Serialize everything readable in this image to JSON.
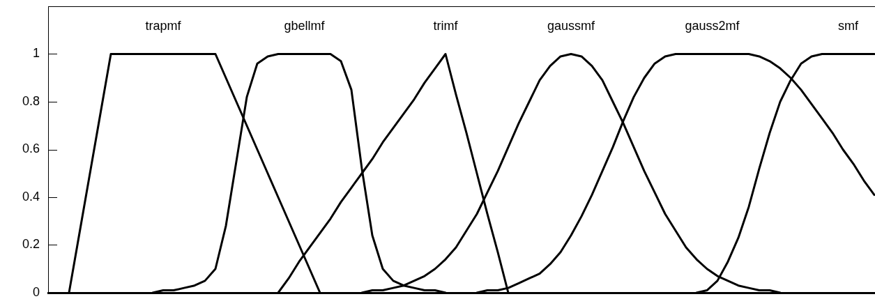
{
  "chart_data": {
    "type": "line",
    "categories": [
      null,
      null,
      null,
      null,
      null,
      null,
      null,
      null,
      null,
      null,
      null,
      null,
      null,
      null,
      null,
      null,
      null,
      null,
      null,
      null,
      null,
      null,
      null,
      null,
      null,
      null,
      null,
      null,
      null,
      null,
      null,
      null,
      null,
      null,
      null,
      null,
      null,
      null,
      null,
      null,
      null,
      null,
      null,
      null,
      null,
      null,
      null,
      null,
      null,
      null,
      null,
      null,
      null,
      null,
      null,
      null,
      null,
      null,
      null,
      null,
      null,
      null,
      null,
      null,
      null,
      null,
      null,
      null,
      null,
      null,
      null,
      null,
      null,
      null,
      null,
      null,
      null,
      null,
      null,
      null
    ],
    "series": [
      {
        "name": "trapmf",
        "color": "#000000",
        "values": [
          null,
          null,
          0,
          0.25,
          0.5,
          0.75,
          1,
          1,
          1,
          1,
          1,
          1,
          1,
          1,
          1,
          1,
          1,
          0.9,
          0.8,
          0.7,
          0.6,
          0.5,
          0.4,
          0.3,
          0.2,
          0.1,
          0,
          null,
          null,
          null,
          null,
          null,
          null,
          null,
          null,
          null,
          null,
          null,
          null,
          null,
          null,
          null,
          null,
          null,
          null,
          null,
          null,
          null,
          null,
          null,
          null,
          null,
          null,
          null,
          null,
          null,
          null,
          null,
          null,
          null,
          null,
          null,
          null,
          null,
          null,
          null,
          null,
          null,
          null,
          null,
          null,
          null,
          null,
          null,
          null,
          null,
          null,
          null,
          null,
          null
        ]
      },
      {
        "name": "gbellmf",
        "color": "#000000",
        "values": [
          null,
          null,
          null,
          null,
          null,
          null,
          null,
          null,
          null,
          null,
          0,
          0.01,
          0.01,
          0.02,
          0.03,
          0.05,
          0.1,
          0.28,
          0.55,
          0.82,
          0.96,
          0.99,
          1,
          1,
          1,
          1,
          1,
          1,
          0.97,
          0.85,
          0.52,
          0.24,
          0.1,
          0.05,
          0.03,
          0.02,
          0.01,
          0.01,
          0,
          null,
          null,
          null,
          null,
          null,
          null,
          null,
          null,
          null,
          null,
          null,
          null,
          null,
          null,
          null,
          null,
          null,
          null,
          null,
          null,
          null,
          null,
          null,
          null,
          null,
          null,
          null,
          null,
          null,
          null,
          null,
          null,
          null,
          null,
          null,
          null,
          null,
          null,
          null,
          null,
          null
        ]
      },
      {
        "name": "trimf",
        "color": "#000000",
        "values": [
          null,
          null,
          null,
          null,
          null,
          null,
          null,
          null,
          null,
          null,
          null,
          null,
          null,
          null,
          null,
          null,
          null,
          null,
          null,
          null,
          null,
          null,
          0,
          0.06,
          0.13,
          0.19,
          0.25,
          0.31,
          0.38,
          0.44,
          0.5,
          0.56,
          0.63,
          0.69,
          0.75,
          0.81,
          0.88,
          0.94,
          1,
          0.83,
          0.67,
          0.5,
          0.33,
          0.17,
          0,
          null,
          null,
          null,
          null,
          null,
          null,
          null,
          null,
          null,
          null,
          null,
          null,
          null,
          null,
          null,
          null,
          null,
          null,
          null,
          null,
          null,
          null,
          null,
          null,
          null,
          null,
          null,
          null,
          null,
          null,
          null,
          null,
          null,
          null,
          null
        ]
      },
      {
        "name": "gaussmf",
        "color": "#000000",
        "values": [
          null,
          null,
          null,
          null,
          null,
          null,
          null,
          null,
          null,
          null,
          null,
          null,
          null,
          null,
          null,
          null,
          null,
          null,
          null,
          null,
          null,
          null,
          null,
          null,
          null,
          null,
          null,
          null,
          null,
          null,
          0,
          0.01,
          0.01,
          0.02,
          0.03,
          0.05,
          0.07,
          0.1,
          0.14,
          0.19,
          0.26,
          0.33,
          0.42,
          0.51,
          0.61,
          0.71,
          0.8,
          0.89,
          0.95,
          0.99,
          1,
          0.99,
          0.95,
          0.89,
          0.8,
          0.71,
          0.61,
          0.51,
          0.42,
          0.33,
          0.26,
          0.19,
          0.14,
          0.1,
          0.07,
          0.05,
          0.03,
          0.02,
          0.01,
          0.01,
          0,
          null,
          null,
          null,
          null,
          null,
          null,
          null,
          null,
          null
        ]
      },
      {
        "name": "gauss2mf",
        "color": "#000000",
        "values": [
          null,
          null,
          null,
          null,
          null,
          null,
          null,
          null,
          null,
          null,
          null,
          null,
          null,
          null,
          null,
          null,
          null,
          null,
          null,
          null,
          null,
          null,
          null,
          null,
          null,
          null,
          null,
          null,
          null,
          null,
          null,
          null,
          null,
          null,
          null,
          null,
          null,
          null,
          null,
          null,
          null,
          0,
          0.01,
          0.01,
          0.02,
          0.04,
          0.06,
          0.08,
          0.12,
          0.17,
          0.24,
          0.32,
          0.41,
          0.51,
          0.61,
          0.72,
          0.82,
          0.9,
          0.96,
          0.99,
          1,
          1,
          1,
          1,
          1,
          1,
          1,
          1,
          0.99,
          0.97,
          0.94,
          0.9,
          0.85,
          0.79,
          0.73,
          0.67,
          0.6,
          0.54,
          0.47,
          0.41
        ]
      },
      {
        "name": "smf",
        "color": "#000000",
        "values": [
          null,
          null,
          null,
          null,
          null,
          null,
          null,
          null,
          null,
          null,
          null,
          null,
          null,
          null,
          null,
          null,
          null,
          null,
          null,
          null,
          null,
          null,
          null,
          null,
          null,
          null,
          null,
          null,
          null,
          null,
          null,
          null,
          null,
          null,
          null,
          null,
          null,
          null,
          null,
          null,
          null,
          null,
          null,
          null,
          null,
          null,
          null,
          null,
          null,
          null,
          null,
          null,
          null,
          null,
          null,
          null,
          null,
          null,
          null,
          null,
          null,
          null,
          0,
          0.01,
          0.05,
          0.13,
          0.23,
          0.36,
          0.52,
          0.67,
          0.8,
          0.89,
          0.96,
          0.99,
          1,
          1,
          1,
          1,
          1,
          1
        ]
      }
    ],
    "ylim": [
      0,
      1.2
    ],
    "yticks": [
      0,
      0.2,
      0.4,
      0.6,
      0.8,
      1
    ],
    "tick_labels": "y",
    "marker": "none"
  }
}
